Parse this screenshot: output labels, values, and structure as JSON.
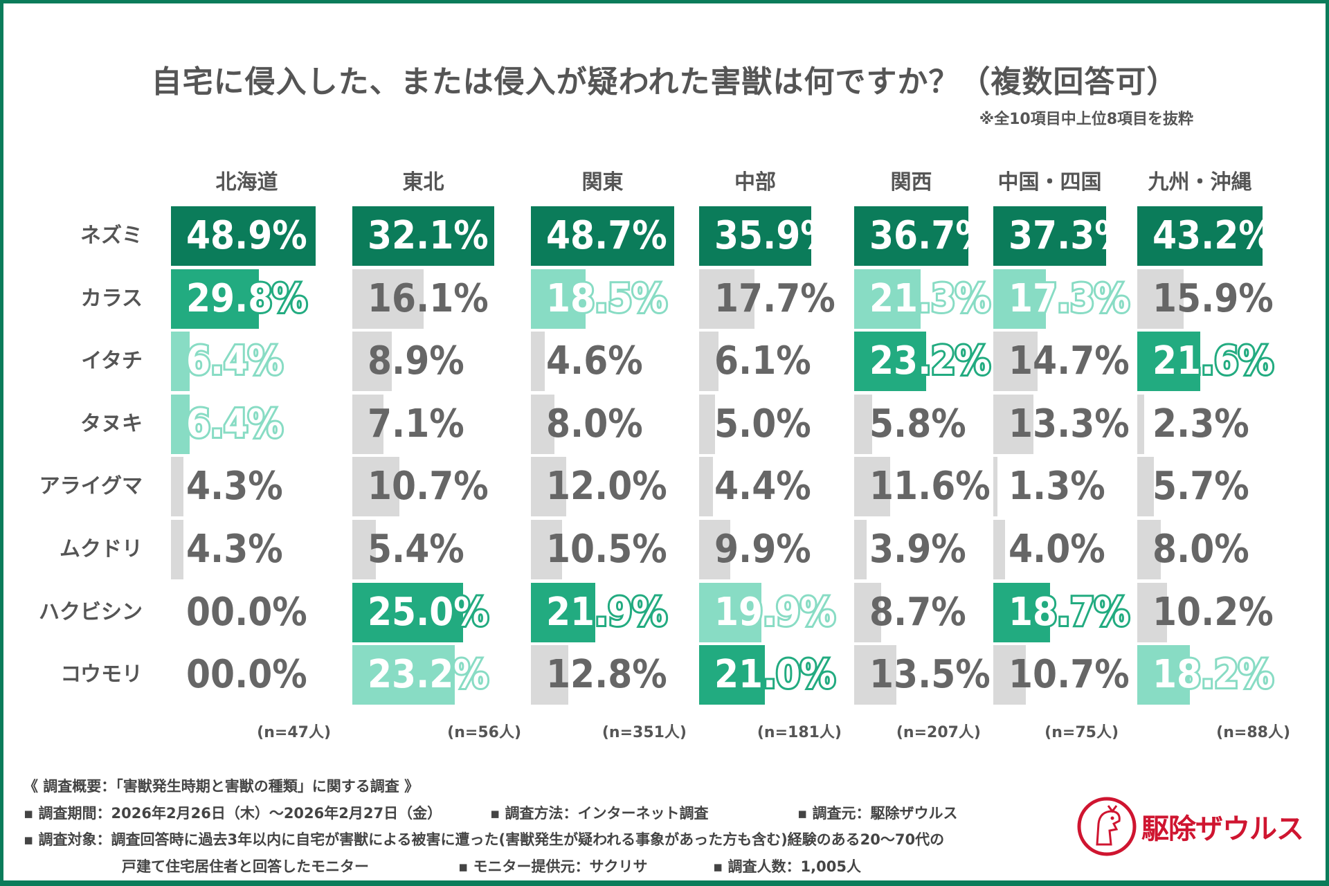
{
  "title": "自宅に侵入した、または侵入が疑われた害獣は何ですか？（複数回答可）",
  "note": "※全10項目中上位8項目を抜粋",
  "colors": {
    "dark": "#0b7c5a",
    "mid": "#22ab80",
    "light": "#88dcc4",
    "grey": "#d9d9d9",
    "grey_text": "#666666",
    "brand_red": "#cf1530"
  },
  "chart_data": {
    "type": "bar",
    "orientation": "horizontal",
    "categories": [
      "ネズミ",
      "カラス",
      "イタチ",
      "タヌキ",
      "アライグマ",
      "ムクドリ",
      "ハクビシン",
      "コウモリ"
    ],
    "unit": "%",
    "series": [
      {
        "name": "北海道",
        "n": "(n=47人)",
        "values": [
          48.9,
          29.8,
          6.4,
          6.4,
          4.3,
          4.3,
          0.0,
          0.0
        ],
        "labels": [
          "48.9%",
          "29.8%",
          "6.4%",
          "6.4%",
          "4.3%",
          "4.3%",
          "00.0%",
          "00.0%"
        ],
        "highlight": [
          "dark",
          "mid",
          "light",
          "light",
          "grey",
          "grey",
          "none",
          "none"
        ]
      },
      {
        "name": "東北",
        "n": "(n=56人)",
        "values": [
          32.1,
          16.1,
          8.9,
          7.1,
          10.7,
          5.4,
          25.0,
          23.2
        ],
        "labels": [
          "32.1%",
          "16.1%",
          "8.9%",
          "7.1%",
          "10.7%",
          "5.4%",
          "25.0%",
          "23.2%"
        ],
        "highlight": [
          "dark",
          "grey",
          "grey",
          "grey",
          "grey",
          "grey",
          "mid",
          "light"
        ]
      },
      {
        "name": "関東",
        "n": "(n=351人)",
        "values": [
          48.7,
          18.5,
          4.6,
          8.0,
          12.0,
          10.5,
          21.9,
          12.8
        ],
        "labels": [
          "48.7%",
          "18.5%",
          "4.6%",
          "8.0%",
          "12.0%",
          "10.5%",
          "21.9%",
          "12.8%"
        ],
        "highlight": [
          "dark",
          "light",
          "grey",
          "grey",
          "grey",
          "grey",
          "mid",
          "grey"
        ]
      },
      {
        "name": "中部",
        "n": "(n=181人)",
        "values": [
          35.9,
          17.7,
          6.1,
          5.0,
          4.4,
          9.9,
          19.9,
          21.0
        ],
        "labels": [
          "35.9%",
          "17.7%",
          "6.1%",
          "5.0%",
          "4.4%",
          "9.9%",
          "19.9%",
          "21.0%"
        ],
        "highlight": [
          "dark",
          "grey",
          "grey",
          "grey",
          "grey",
          "grey",
          "light",
          "mid"
        ]
      },
      {
        "name": "関西",
        "n": "(n=207人)",
        "values": [
          36.7,
          21.3,
          23.2,
          5.8,
          11.6,
          3.9,
          8.7,
          13.5
        ],
        "labels": [
          "36.7%",
          "21.3%",
          "23.2%",
          "5.8%",
          "11.6%",
          "3.9%",
          "8.7%",
          "13.5%"
        ],
        "highlight": [
          "dark",
          "light",
          "mid",
          "grey",
          "grey",
          "grey",
          "grey",
          "grey"
        ]
      },
      {
        "name": "中国・四国",
        "n": "(n=75人)",
        "values": [
          37.3,
          17.3,
          14.7,
          13.3,
          1.3,
          4.0,
          18.7,
          10.7
        ],
        "labels": [
          "37.3%",
          "17.3%",
          "14.7%",
          "13.3%",
          "1.3%",
          "4.0%",
          "18.7%",
          "10.7%"
        ],
        "highlight": [
          "dark",
          "light",
          "grey",
          "grey",
          "grey",
          "grey",
          "mid",
          "grey"
        ]
      },
      {
        "name": "九州・沖縄",
        "n": "(n=88人)",
        "values": [
          43.2,
          15.9,
          21.6,
          2.3,
          5.7,
          8.0,
          10.2,
          18.2
        ],
        "labels": [
          "43.2%",
          "15.9%",
          "21.6%",
          "2.3%",
          "5.7%",
          "8.0%",
          "10.2%",
          "18.2%"
        ],
        "highlight": [
          "dark",
          "grey",
          "mid",
          "grey",
          "grey",
          "grey",
          "grey",
          "light"
        ]
      }
    ]
  },
  "footer": {
    "heading": "《 調査概要：「害獣発生時期と害獣の種類」に関する調査 》",
    "period": "▪ 調査期間：2026年2月26日（木）～2026年2月27日（金）",
    "method": "▪ 調査方法：インターネット調査",
    "source": "▪ 調査元：駆除ザウルス",
    "target": "▪ 調査対象：調査回答時に過去3年以内に自宅が害獣による被害に遭った(害獣発生が疑われる事象があった方も含む)経験のある20～70代の",
    "target2": "戸建て住宅居住者と回答したモニター",
    "provider": "▪ モニター提供元：サクリサ",
    "count": "▪ 調査人数：1,005人"
  },
  "logo": {
    "text": "駆除ザウルス",
    "icon": "dinosaur-mascot-icon"
  }
}
